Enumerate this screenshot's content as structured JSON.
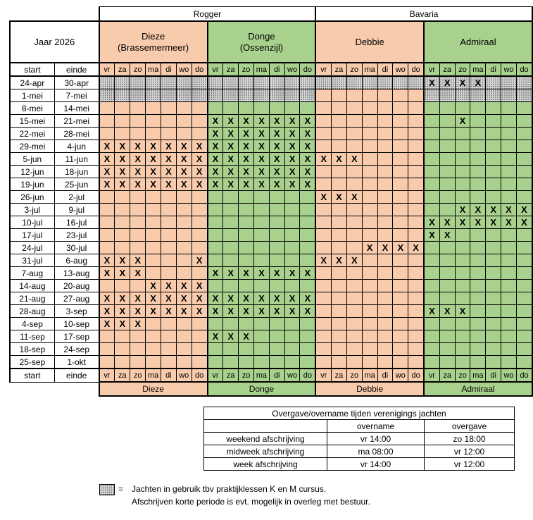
{
  "year_label": "Jaar 2026",
  "owners": [
    "Rogger",
    "Bavaria"
  ],
  "boats": [
    {
      "name": "Dieze",
      "sub": "(Brassemermeer)",
      "footer": "Dieze",
      "color": "salmon"
    },
    {
      "name": "Donge",
      "sub": "(Ossenzijl)",
      "footer": "Donge",
      "color": "green"
    },
    {
      "name": "Debbie",
      "sub": "",
      "footer": "Debbie",
      "color": "salmon"
    },
    {
      "name": "Admiraal",
      "sub": "",
      "footer": "Admiraal",
      "color": "green"
    }
  ],
  "start_label": "start",
  "end_label": "einde",
  "days": [
    "vr",
    "za",
    "zo",
    "ma",
    "di",
    "wo",
    "do"
  ],
  "mark": "X",
  "colors": {
    "salmon": "#f8cbad",
    "green": "#a9d18e"
  },
  "weeks": [
    {
      "start": "24-apr",
      "end": "30-apr",
      "b": [
        "·······",
        "·······",
        "·······",
        "XXXX···"
      ]
    },
    {
      "start": "1-mei",
      "end": "7-mei",
      "b": [
        "·······",
        "·······",
        "       ",
        "·······"
      ]
    },
    {
      "start": "8-mei",
      "end": "14-mei",
      "b": [
        "       ",
        "       ",
        "       ",
        "       "
      ]
    },
    {
      "start": "15-mei",
      "end": "21-mei",
      "b": [
        "       ",
        "XXXXXXX",
        "       ",
        "  X    "
      ]
    },
    {
      "start": "22-mei",
      "end": "28-mei",
      "b": [
        "       ",
        "XXXXXXX",
        "       ",
        "       "
      ]
    },
    {
      "start": "29-mei",
      "end": "4-jun",
      "b": [
        "XXXXXXX",
        "XXXXXXX",
        "       ",
        "       "
      ]
    },
    {
      "start": "5-jun",
      "end": "11-jun",
      "b": [
        "XXXXXXX",
        "XXXXXXX",
        "XXX    ",
        "       "
      ]
    },
    {
      "start": "12-jun",
      "end": "18-jun",
      "b": [
        "XXXXXXX",
        "XXXXXXX",
        "       ",
        "       "
      ]
    },
    {
      "start": "19-jun",
      "end": "25-jun",
      "b": [
        "XXXXXXX",
        "XXXXXXX",
        "       ",
        "       "
      ]
    },
    {
      "start": "26-jun",
      "end": "2-jul",
      "b": [
        "       ",
        "       ",
        "XXX    ",
        "       "
      ]
    },
    {
      "start": "3-jul",
      "end": "9-jul",
      "b": [
        "       ",
        "       ",
        "       ",
        "  XXXXX"
      ]
    },
    {
      "start": "10-jul",
      "end": "16-jul",
      "b": [
        "       ",
        "       ",
        "       ",
        "XXXXXXX"
      ]
    },
    {
      "start": "17-jul",
      "end": "23-jul",
      "b": [
        "       ",
        "       ",
        "       ",
        "XX     "
      ]
    },
    {
      "start": "24-jul",
      "end": "30-jul",
      "b": [
        "       ",
        "       ",
        "   XXXX",
        "       "
      ]
    },
    {
      "start": "31-jul",
      "end": "6-aug",
      "b": [
        "XXX   X",
        "       ",
        "XXX    ",
        "       "
      ]
    },
    {
      "start": "7-aug",
      "end": "13-aug",
      "b": [
        "XXX    ",
        "XXXXXXX",
        "       ",
        "       "
      ]
    },
    {
      "start": "14-aug",
      "end": "20-aug",
      "b": [
        "   XXXX",
        "       ",
        "       ",
        "       "
      ]
    },
    {
      "start": "21-aug",
      "end": "27-aug",
      "b": [
        "XXXXXXX",
        "XXXXXXX",
        "       ",
        "       "
      ]
    },
    {
      "start": "28-aug",
      "end": "3-sep",
      "b": [
        "XXXXXXX",
        "XXXXXXX",
        "       ",
        "XXX    "
      ]
    },
    {
      "start": "4-sep",
      "end": "10-sep",
      "b": [
        "XXX    ",
        "       ",
        "       ",
        "       "
      ]
    },
    {
      "start": "11-sep",
      "end": "17-sep",
      "b": [
        "       ",
        "XXX    ",
        "       ",
        "       "
      ]
    },
    {
      "start": "18-sep",
      "end": "24-sep",
      "b": [
        "       ",
        "       ",
        "       ",
        "       "
      ]
    },
    {
      "start": "25-sep",
      "end": "1-okt",
      "b": [
        "       ",
        "       ",
        "       ",
        "       "
      ]
    }
  ],
  "handover": {
    "title": "Overgave/overname tijden verenigings jachten",
    "col_overname": "overname",
    "col_overgave": "overgave",
    "rows": [
      {
        "label": "weekend afschrijving",
        "overname": "vr 14:00",
        "overgave": "zo 18:00"
      },
      {
        "label": "midweek afschrijving",
        "overname": "ma 08:00",
        "overgave": "vr 12:00"
      },
      {
        "label": "week afschrijving",
        "overname": "vr 14:00",
        "overgave": "vr 12:00"
      }
    ]
  },
  "legend": {
    "eq": "=",
    "line1": "Jachten in gebruik tbv praktijklessen K en M cursus.",
    "line2": "Afschrijven korte periode is evt. mogelijk in overleg met bestuur."
  }
}
